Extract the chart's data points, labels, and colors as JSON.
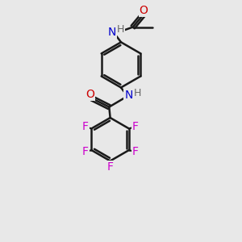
{
  "bg_color": "#e8e8e8",
  "bond_color": "#1a1a1a",
  "N_color": "#0000cc",
  "O_color": "#cc0000",
  "F_color": "#cc00cc",
  "H_color": "#666666",
  "lw": 1.8,
  "figsize": [
    3.0,
    3.0
  ],
  "dpi": 100,
  "xlim": [
    1.0,
    9.0
  ],
  "ylim": [
    0.5,
    11.5
  ]
}
